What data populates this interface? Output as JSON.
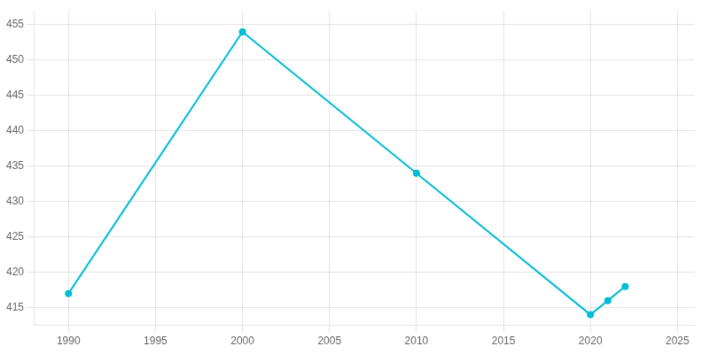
{
  "chart_data": {
    "type": "line",
    "x": [
      1990,
      2000,
      2010,
      2020,
      2021,
      2022
    ],
    "values": [
      417,
      454,
      434,
      414,
      416,
      418
    ],
    "color": "#00BCD4",
    "marker": "circle",
    "xlim": [
      1988,
      2026
    ],
    "ylim": [
      412.5,
      457
    ],
    "xticks": [
      1990,
      1995,
      2000,
      2005,
      2010,
      2015,
      2020,
      2025
    ],
    "yticks": [
      415,
      420,
      425,
      430,
      435,
      440,
      445,
      450,
      455
    ],
    "grid": true
  }
}
